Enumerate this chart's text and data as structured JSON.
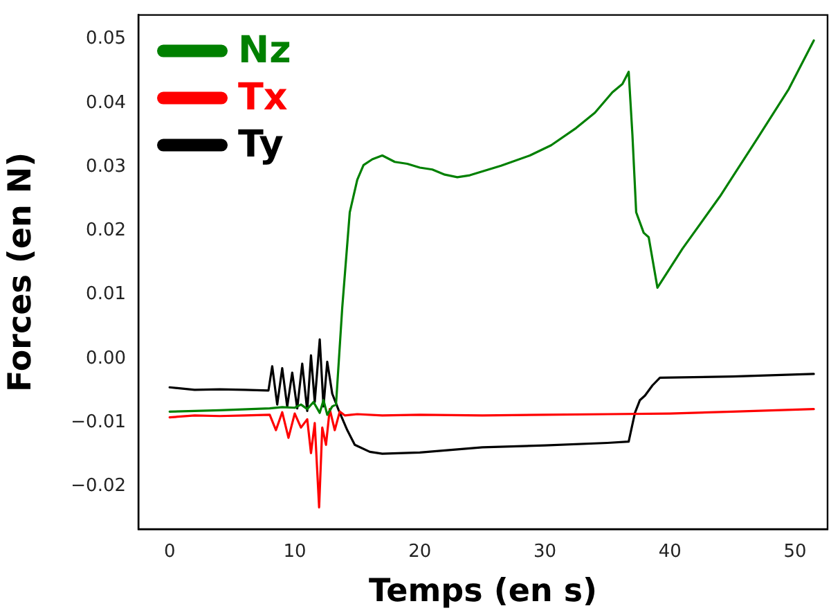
{
  "chart_data": {
    "type": "line",
    "xlabel": "Temps (en s)",
    "ylabel": "Forces (en N)",
    "xlim": [
      -2.5,
      52.6
    ],
    "xticks": [
      0,
      10,
      20,
      30,
      40,
      50
    ],
    "ylim": [
      -0.0267,
      0.0538
    ],
    "yticks": [
      {
        "value": -0.02,
        "label": "−0.02"
      },
      {
        "value": -0.01,
        "label": "−0.01"
      },
      {
        "value": 0,
        "label": "0.00"
      },
      {
        "value": 0.01,
        "label": "0.01"
      },
      {
        "value": 0.02,
        "label": "0.02"
      },
      {
        "value": 0.03,
        "label": "0.03"
      },
      {
        "value": 0.04,
        "label": "0.04"
      },
      {
        "value": 0.05,
        "label": "0.05"
      }
    ],
    "grid": false,
    "legend": "top left",
    "marker": "none",
    "line_style": "solid",
    "series": [
      {
        "name": "Nz",
        "color": "#008000",
        "x": [
          0,
          4,
          8,
          9,
          10,
          10.5,
          11,
          11.5,
          12,
          12.3,
          12.6,
          13,
          13.3,
          13.8,
          14.4,
          15,
          15.5,
          16.2,
          17,
          18,
          19,
          20,
          21,
          22,
          23,
          24,
          25,
          26.5,
          28.8,
          30.5,
          32.5,
          34,
          35.4,
          36.2,
          36.7,
          37,
          37.3,
          37.9,
          38.3,
          39,
          41,
          44,
          47,
          49.5,
          51.5
        ],
        "values": [
          -0.0083,
          -0.0081,
          -0.0078,
          -0.0076,
          -0.0077,
          -0.0072,
          -0.0079,
          -0.0068,
          -0.0085,
          -0.0065,
          -0.0088,
          -0.0075,
          -0.0072,
          0.008,
          0.0229,
          0.028,
          0.0303,
          0.0312,
          0.0318,
          0.0308,
          0.0305,
          0.0299,
          0.0296,
          0.0288,
          0.0284,
          0.0287,
          0.0293,
          0.0302,
          0.0318,
          0.0334,
          0.0361,
          0.0385,
          0.0417,
          0.043,
          0.0449,
          0.035,
          0.0229,
          0.0197,
          0.019,
          0.0111,
          0.0172,
          0.0254,
          0.0345,
          0.0422,
          0.0498
        ]
      },
      {
        "name": "Tx",
        "color": "#ff0000",
        "x": [
          0,
          2,
          4,
          6,
          8,
          8.5,
          9,
          9.5,
          10,
          10.5,
          11,
          11.3,
          11.6,
          11.95,
          12.2,
          12.5,
          12.8,
          13.2,
          13.6,
          14,
          15,
          17,
          20,
          25,
          30,
          35,
          40,
          45,
          51.5
        ],
        "values": [
          -0.0092,
          -0.0089,
          -0.009,
          -0.0089,
          -0.0088,
          -0.0112,
          -0.0084,
          -0.0124,
          -0.0086,
          -0.0108,
          -0.0095,
          -0.0148,
          -0.0101,
          -0.0233,
          -0.0108,
          -0.0135,
          -0.0079,
          -0.0112,
          -0.0083,
          -0.0089,
          -0.0087,
          -0.0089,
          -0.0088,
          -0.0089,
          -0.0088,
          -0.0087,
          -0.0086,
          -0.0083,
          -0.0079
        ]
      },
      {
        "name": "Ty",
        "color": "#000000",
        "x": [
          0,
          2,
          4,
          6,
          7.9,
          8.2,
          8.6,
          9,
          9.4,
          9.8,
          10.2,
          10.6,
          11,
          11.3,
          11.6,
          12,
          12.3,
          12.6,
          13,
          13.5,
          14.2,
          14.8,
          16,
          17,
          20,
          25,
          30,
          35,
          36.7,
          37.2,
          37.6,
          38,
          38.6,
          39.2,
          45,
          51.5
        ],
        "values": [
          -0.0045,
          -0.0049,
          -0.0048,
          -0.0049,
          -0.005,
          -0.0012,
          -0.0072,
          -0.0015,
          -0.0075,
          -0.0022,
          -0.0078,
          -0.0008,
          -0.0082,
          0.0005,
          -0.0068,
          0.003,
          -0.0075,
          -0.0005,
          -0.0055,
          -0.008,
          -0.0112,
          -0.0135,
          -0.0146,
          -0.0149,
          -0.0147,
          -0.0139,
          -0.0136,
          -0.0132,
          -0.013,
          -0.0085,
          -0.0065,
          -0.0058,
          -0.0042,
          -0.003,
          -0.0028,
          -0.0024
        ]
      }
    ]
  }
}
